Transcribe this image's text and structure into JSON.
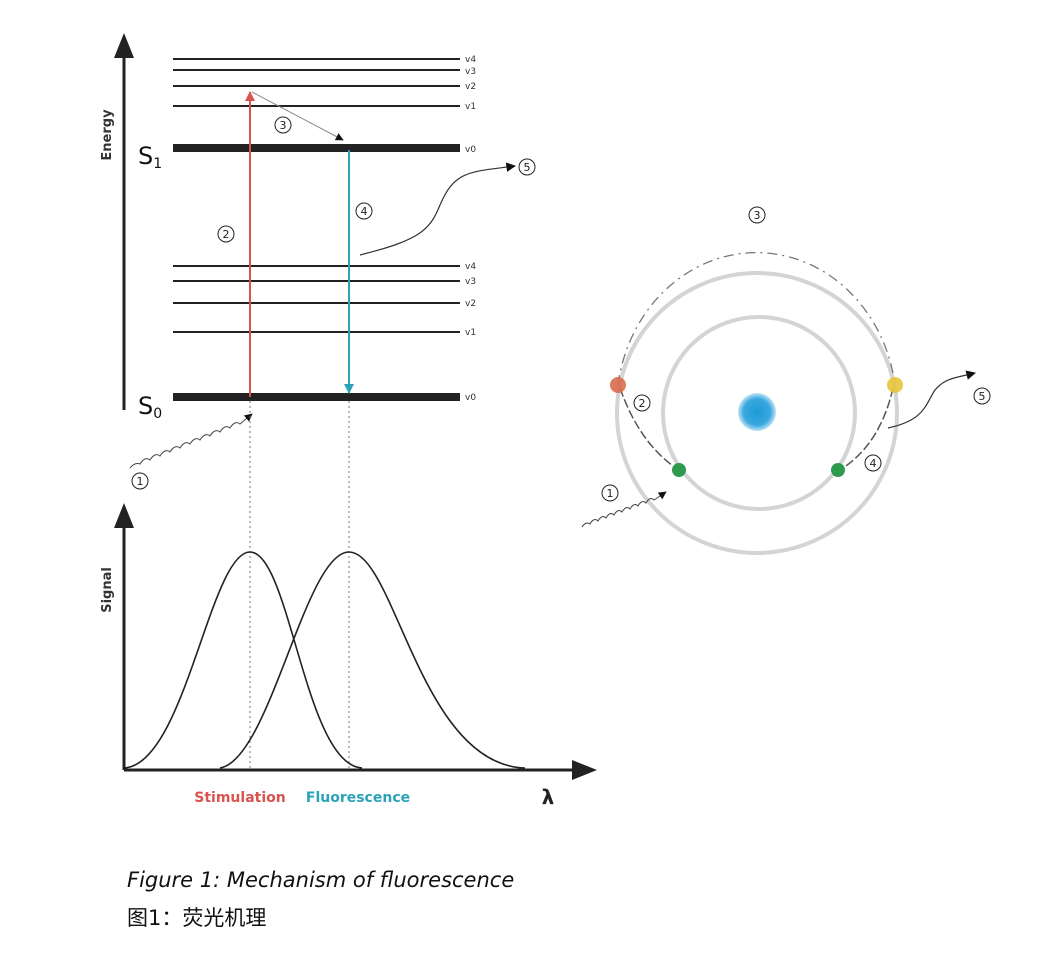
{
  "energy_diagram": {
    "axis_label": "Energy",
    "states": [
      {
        "label_main": "S",
        "label_sub": "1",
        "levels": [
          "v4",
          "v3",
          "v2",
          "v1",
          "v0"
        ]
      },
      {
        "label_main": "S",
        "label_sub": "0",
        "levels": [
          "v4",
          "v3",
          "v2",
          "v1",
          "v0"
        ]
      }
    ],
    "steps": [
      "1",
      "2",
      "3",
      "4",
      "5"
    ]
  },
  "spectrum": {
    "y_label": "Signal",
    "x_label": "λ",
    "stimulation_label": "Stimulation",
    "fluorescence_label": "Fluorescence"
  },
  "atom": {
    "steps": [
      "1",
      "2",
      "3",
      "4",
      "5"
    ]
  },
  "colors": {
    "stimulation": "#d9534f",
    "fluorescence": "#2aa3b8",
    "nucleus": "#1e9ad6",
    "electron_excited": "#d86a4e",
    "electron_ground": "#2e9a4e",
    "electron_relaxed": "#e8c53a"
  },
  "caption": {
    "english": "Figure 1: Mechanism of fluorescence",
    "chinese": "图1：荧光机理"
  }
}
